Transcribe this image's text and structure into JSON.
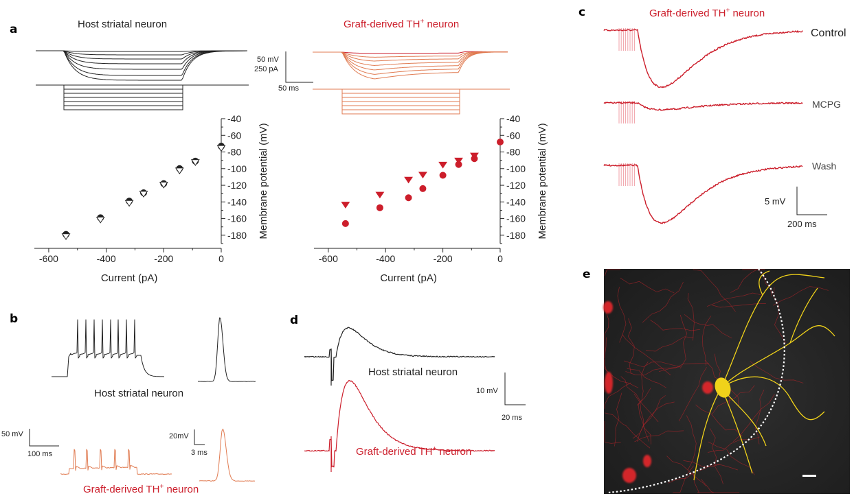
{
  "panel_labels": {
    "a": "a",
    "b": "b",
    "c": "c",
    "d": "d",
    "e": "e"
  },
  "colors": {
    "host": "#222222",
    "graft": "#cc1e2b",
    "graft_light": "#e07a50",
    "ink": "#222222"
  },
  "panel_a": {
    "host_title": "Host striatal neuron",
    "graft_title_main": "Graft-derived TH",
    "graft_title_sup": "+",
    "graft_title_tail": " neuron",
    "scale_mv": "50 mV",
    "scale_pa": "250 pA",
    "scale_ms": "50 ms"
  },
  "panel_b": {
    "host_label": "Host striatal neuron",
    "graft_main": "Graft-derived TH",
    "graft_sup": "+",
    "graft_tail": " neuron",
    "scale_mv_left": "50 mV",
    "scale_ms_left": "100 ms",
    "scale_mv_right": "20mV",
    "scale_ms_right": "3 ms"
  },
  "panel_c": {
    "title_main": "Graft-derived TH",
    "title_sup": "+",
    "title_tail": " neuron",
    "trace_labels": [
      "Control",
      "MCPG",
      "Wash"
    ],
    "scale_mv": "5 mV",
    "scale_ms": "200 ms"
  },
  "panel_d": {
    "host_label": "Host striatal neuron",
    "graft_main": "Graft-derived TH",
    "graft_sup": "+",
    "graft_tail": " neuron",
    "scale_mv": "10 mV",
    "scale_ms": "20 ms"
  },
  "panel_e": {
    "image": "fluorescence micrograph (red TH+ cells, yellow filled neuron, dashed graft boundary)"
  },
  "chart_data": [
    {
      "type": "scatter",
      "panel": "a-left",
      "xlabel": "Current (pA)",
      "ylabel": "Membrane potential (mV)",
      "xlim": [
        -650,
        0
      ],
      "ylim": [
        -190,
        -40
      ],
      "xticks": [
        -600,
        -400,
        -200,
        0
      ],
      "yticks": [
        -40,
        -60,
        -80,
        -100,
        -120,
        -140,
        -160,
        -180
      ],
      "series": [
        {
          "marker": "filled-circle",
          "color": "#222222",
          "x": [
            -540,
            -420,
            -320,
            -270,
            -200,
            -145,
            -90,
            0
          ],
          "y": [
            -179,
            -159,
            -139,
            -129,
            -118,
            -100,
            -91,
            -73
          ]
        },
        {
          "marker": "open-triangle-down",
          "color": "#222222",
          "x": [
            -540,
            -420,
            -320,
            -270,
            -200,
            -145,
            -90,
            0
          ],
          "y": [
            -181,
            -161,
            -141,
            -130,
            -119,
            -102,
            -92,
            -75
          ]
        }
      ]
    },
    {
      "type": "scatter",
      "panel": "a-right",
      "xlabel": "Current (pA)",
      "ylabel": "Membrane potential (mV)",
      "xlim": [
        -650,
        0
      ],
      "ylim": [
        -190,
        -40
      ],
      "xticks": [
        -600,
        -400,
        -200,
        0
      ],
      "yticks": [
        -40,
        -60,
        -80,
        -100,
        -120,
        -140,
        -160,
        -180
      ],
      "series": [
        {
          "marker": "filled-circle",
          "color": "#cc1e2b",
          "x": [
            -540,
            -420,
            -320,
            -270,
            -200,
            -145,
            -90,
            0
          ],
          "y": [
            -166,
            -147,
            -135,
            -124,
            -108,
            -95,
            -88,
            -68
          ]
        },
        {
          "marker": "filled-triangle-down",
          "color": "#cc1e2b",
          "x": [
            -540,
            -420,
            -320,
            -270,
            -200,
            -145,
            -90
          ],
          "y": [
            -143,
            -131,
            -113,
            -107,
            -95,
            -90,
            -84
          ]
        }
      ]
    }
  ]
}
